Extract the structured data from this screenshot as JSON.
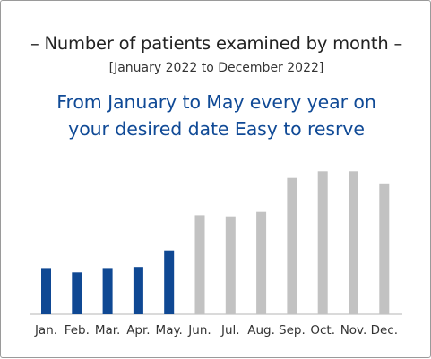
{
  "title": "– Number of patients examined by month –",
  "subtitle": "[January 2022 to December 2022]",
  "headline": {
    "line1": "From January to May every year on",
    "line2": "your desired date Easy to resrve"
  },
  "colors": {
    "highlight": "#0f4893",
    "normal": "#c2c2c2",
    "headline": "#104a96",
    "axis": "#b5b5b5"
  },
  "chart_data": {
    "type": "bar",
    "categories": [
      "Jan.",
      "Feb.",
      "Mar.",
      "Apr.",
      "May.",
      "Jun.",
      "Jul.",
      "Aug.",
      "Sep.",
      "Oct.",
      "Nov.",
      "Dec."
    ],
    "values": [
      42,
      38,
      42,
      43,
      58,
      90,
      89,
      93,
      124,
      130,
      130,
      119
    ],
    "highlighted": [
      true,
      true,
      true,
      true,
      true,
      false,
      false,
      false,
      false,
      false,
      false,
      false
    ],
    "title": "Number of patients examined by month",
    "xlabel": "",
    "ylabel": "",
    "ylim": [
      0,
      140
    ],
    "grid": false,
    "legend": "none"
  }
}
